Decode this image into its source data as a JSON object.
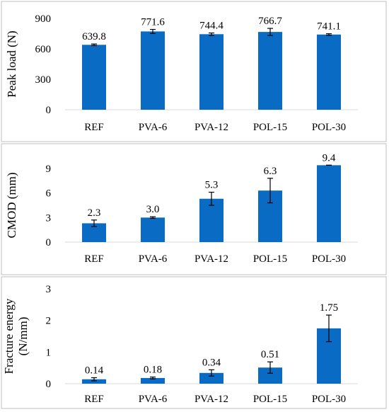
{
  "categories": [
    "REF",
    "PVA-6",
    "PVA-12",
    "POL-15",
    "POL-30"
  ],
  "bar_color": "#0A6BC5",
  "panel_border_color": "#BFBFBF",
  "chart_data": [
    {
      "type": "bar",
      "ylabel": "Peak load (N)",
      "ylim": [
        0,
        900
      ],
      "yticks": [
        "0",
        "300",
        "600",
        "900"
      ],
      "categories": [
        "REF",
        "PVA-6",
        "PVA-12",
        "POL-15",
        "POL-30"
      ],
      "values": [
        639.8,
        771.6,
        744.4,
        766.7,
        741.1
      ],
      "errors": [
        8,
        20,
        12,
        35,
        8
      ],
      "value_labels": [
        "639.8",
        "771.6",
        "744.4",
        "766.7",
        "741.1"
      ],
      "grid": false
    },
    {
      "type": "bar",
      "ylabel": "CMOD (mm)",
      "ylim": [
        0,
        9
      ],
      "yticks": [
        "0",
        "3",
        "6",
        "9"
      ],
      "categories": [
        "REF",
        "PVA-6",
        "PVA-12",
        "POL-15",
        "POL-30"
      ],
      "values": [
        2.3,
        3.0,
        5.3,
        6.3,
        9.4
      ],
      "errors": [
        0.4,
        0.1,
        0.8,
        1.5,
        0.0
      ],
      "value_labels": [
        "2.3",
        "3.0",
        "5.3",
        "6.3",
        "9.4"
      ],
      "grid": false
    },
    {
      "type": "bar",
      "ylabel": [
        "Fracture energy",
        "(N/mm)"
      ],
      "ylim": [
        0,
        3
      ],
      "yticks": [
        "0",
        "1",
        "2",
        "3"
      ],
      "categories": [
        "REF",
        "PVA-6",
        "PVA-12",
        "POL-15",
        "POL-30"
      ],
      "values": [
        0.14,
        0.18,
        0.34,
        0.51,
        1.75
      ],
      "errors": [
        0.05,
        0.03,
        0.1,
        0.18,
        0.42
      ],
      "value_labels": [
        "0.14",
        "0.18",
        "0.34",
        "0.51",
        "1.75"
      ],
      "grid": false
    }
  ]
}
